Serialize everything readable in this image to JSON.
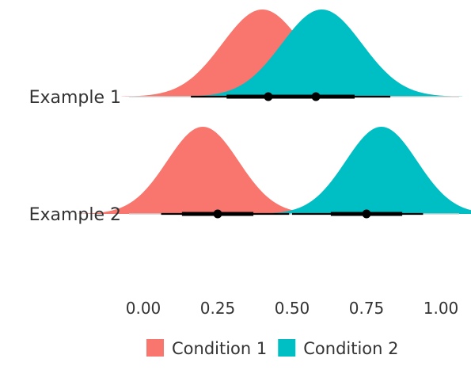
{
  "chart_data": {
    "type": "halfeye",
    "categories": [
      "Example 1",
      "Example 2"
    ],
    "xlim": [
      0,
      1
    ],
    "x_ticks": [
      0,
      0.25,
      0.5,
      0.75,
      1
    ],
    "x_tick_labels": [
      "0.00",
      "0.25",
      "0.50",
      "0.75",
      "1.00"
    ],
    "xlabel": "",
    "ylabel": "",
    "grid": false,
    "legend_position": "bottom",
    "series": [
      {
        "name": "Condition 1",
        "color": "#F8766D",
        "rows": [
          {
            "category": "Example 1",
            "mean": 0.4,
            "sd": 0.135,
            "point": 0.42,
            "interval_66": [
              0.28,
              0.52
            ],
            "interval_95": [
              0.16,
              0.65
            ]
          },
          {
            "category": "Example 2",
            "mean": 0.2,
            "sd": 0.12,
            "point": 0.25,
            "interval_66": [
              0.13,
              0.37
            ],
            "interval_95": [
              0.06,
              0.49
            ]
          }
        ]
      },
      {
        "name": "Condition 2",
        "color": "#00BFC4",
        "rows": [
          {
            "category": "Example 1",
            "mean": 0.6,
            "sd": 0.135,
            "point": 0.58,
            "interval_66": [
              0.48,
              0.71
            ],
            "interval_95": [
              0.35,
              0.83
            ]
          },
          {
            "category": "Example 2",
            "mean": 0.8,
            "sd": 0.12,
            "point": 0.75,
            "interval_66": [
              0.63,
              0.87
            ],
            "interval_95": [
              0.5,
              0.94
            ]
          }
        ]
      }
    ]
  }
}
